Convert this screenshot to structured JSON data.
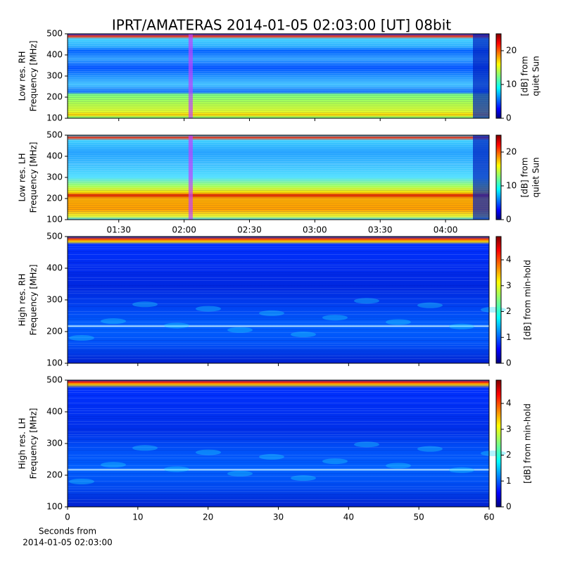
{
  "chart_data": [
    {
      "type": "heatmap",
      "title": "IPRT/AMATERAS 2014-01-05 02:03:00 [UT]   08bit",
      "ylabel": [
        "Low res. RH",
        "Frequency [MHz]"
      ],
      "ylim": [
        100,
        500
      ],
      "yticks": [
        100,
        200,
        300,
        400,
        500
      ],
      "xlim": [
        66.5,
        260
      ],
      "colorbar_label": [
        "[dB] from",
        "quiet Sun"
      ],
      "clim": [
        0,
        25
      ],
      "cticks": [
        0,
        10,
        20
      ]
    },
    {
      "type": "heatmap",
      "ylabel": [
        "Low res. LH",
        "Frequency [MHz]"
      ],
      "ylim": [
        100,
        500
      ],
      "yticks": [
        100,
        200,
        300,
        400,
        500
      ],
      "xlim": [
        66.5,
        260
      ],
      "xticks": [
        {
          "value": 90,
          "label": "01:30"
        },
        {
          "value": 120,
          "label": "02:00"
        },
        {
          "value": 150,
          "label": "02:30"
        },
        {
          "value": 180,
          "label": "03:00"
        },
        {
          "value": 210,
          "label": "03:30"
        },
        {
          "value": 240,
          "label": "04:00"
        }
      ],
      "colorbar_label": [
        "[dB] from",
        "quiet Sun"
      ],
      "clim": [
        0,
        25
      ],
      "cticks": [
        0,
        10,
        20
      ]
    },
    {
      "type": "heatmap",
      "ylabel": [
        "High res. RH",
        "Frequency [MHz]"
      ],
      "ylim": [
        100,
        500
      ],
      "yticks": [
        100,
        200,
        300,
        400,
        500
      ],
      "xlim": [
        0,
        60
      ],
      "colorbar_label": [
        "[dB] from min-hold"
      ],
      "clim": [
        0,
        4.9
      ],
      "cticks": [
        0,
        1,
        2,
        3,
        4
      ]
    },
    {
      "type": "heatmap",
      "ylabel": [
        "High res. LH",
        "Frequency [MHz]"
      ],
      "ylim": [
        100,
        500
      ],
      "yticks": [
        100,
        200,
        300,
        400,
        500
      ],
      "xlim": [
        0,
        60
      ],
      "xticks": [
        0,
        10,
        20,
        30,
        40,
        50,
        60
      ],
      "xlabel": [
        "Seconds from",
        "2014-01-05 02:03:00"
      ],
      "colorbar_label": [
        "[dB] from min-hold"
      ],
      "clim": [
        0,
        4.9
      ],
      "cticks": [
        0,
        1,
        2,
        3,
        4
      ]
    }
  ]
}
